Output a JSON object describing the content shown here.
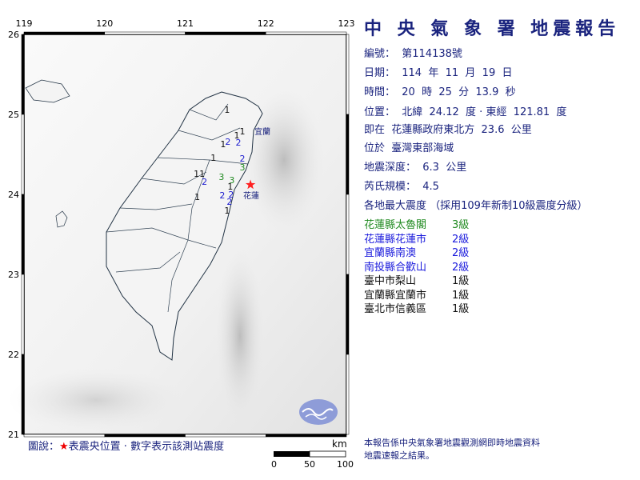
{
  "report": {
    "title": "中 央 氣 象 署 地震報告",
    "number": "編號：  第114138號",
    "date": "日期：  114  年  11  月  19  日",
    "time": "時間：  20  時  25  分  13.9  秒",
    "location": "位置：  北緯  24.12  度 · 東經  121.81  度",
    "relative": "即在  花蓮縣政府東北方  23.6  公里",
    "region": "位於  臺灣東部海域",
    "depth": "地震深度：  6.3  公里",
    "magnitude": "芮氏規模：  4.5",
    "intensity_heading": "各地最大震度 （採用109年新制10級震度分級）",
    "intensities": [
      {
        "place": "花蓮縣太魯閣",
        "level": "3級",
        "color": "#228b22"
      },
      {
        "place": "花蓮縣花蓮市",
        "level": "2級",
        "color": "#1a1adc"
      },
      {
        "place": "宜蘭縣南澳",
        "level": "2級",
        "color": "#1a1adc"
      },
      {
        "place": "南投縣合歡山",
        "level": "2級",
        "color": "#1a1adc"
      },
      {
        "place": "臺中市梨山",
        "level": "1級",
        "color": "#111111"
      },
      {
        "place": "宜蘭縣宜蘭市",
        "level": "1級",
        "color": "#111111"
      },
      {
        "place": "臺北市信義區",
        "level": "1級",
        "color": "#111111"
      }
    ],
    "footnote_1": "本報告係中央氣象署地震觀測網即時地震資料",
    "footnote_2": "地震速報之結果。"
  },
  "map": {
    "lon_ticks": [
      "119",
      "120",
      "121",
      "122",
      "123"
    ],
    "lat_ticks": [
      "26",
      "25",
      "24",
      "23",
      "22",
      "21"
    ],
    "epicenter": {
      "lon": 121.81,
      "lat": 24.12,
      "color": "#ff2020",
      "icon": "star-icon"
    },
    "city_labels": [
      {
        "name": "宜蘭",
        "lon": 121.86,
        "lat": 24.79
      },
      {
        "name": "花蓮",
        "lon": 121.72,
        "lat": 23.99
      }
    ],
    "stations": [
      {
        "v": "1",
        "lon": 121.52,
        "lat": 25.06
      },
      {
        "v": "1",
        "lon": 121.71,
        "lat": 24.79
      },
      {
        "v": "1",
        "lon": 121.64,
        "lat": 24.74
      },
      {
        "v": "2",
        "lon": 121.53,
        "lat": 24.66
      },
      {
        "v": "2",
        "lon": 121.66,
        "lat": 24.65
      },
      {
        "v": "1",
        "lon": 121.47,
        "lat": 24.63
      },
      {
        "v": "1",
        "lon": 121.35,
        "lat": 24.46
      },
      {
        "v": "2",
        "lon": 121.71,
        "lat": 24.45
      },
      {
        "v": "3",
        "lon": 121.71,
        "lat": 24.34
      },
      {
        "v": "1",
        "lon": 121.14,
        "lat": 24.26
      },
      {
        "v": "1",
        "lon": 121.21,
        "lat": 24.26
      },
      {
        "v": "3",
        "lon": 121.45,
        "lat": 24.22
      },
      {
        "v": "2",
        "lon": 121.24,
        "lat": 24.16
      },
      {
        "v": "3",
        "lon": 121.58,
        "lat": 24.18
      },
      {
        "v": "1",
        "lon": 121.56,
        "lat": 24.1
      },
      {
        "v": "1",
        "lon": 121.15,
        "lat": 23.97
      },
      {
        "v": "2",
        "lon": 121.46,
        "lat": 23.99
      },
      {
        "v": "2",
        "lon": 121.57,
        "lat": 24.0
      },
      {
        "v": "2",
        "lon": 121.55,
        "lat": 23.91
      },
      {
        "v": "1",
        "lon": 121.52,
        "lat": 23.8
      }
    ],
    "level_colors": {
      "1": "#111111",
      "2": "#2020d0",
      "3": "#228b22"
    },
    "legend_prefix": "圖說：",
    "legend_star": "★",
    "legend_text": "表震央位置 · 數字表示該測站震度",
    "scale_unit": "km",
    "scale_labels": [
      "0",
      "50",
      "100"
    ]
  }
}
